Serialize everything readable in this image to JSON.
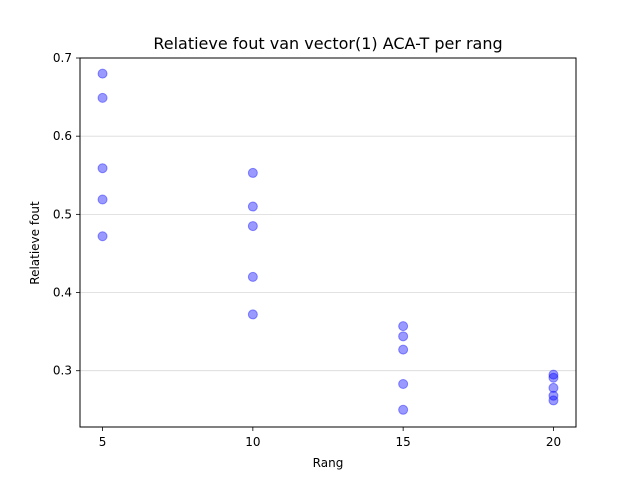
{
  "chart_data": {
    "type": "scatter",
    "title": "Relatieve fout van vector(1) ACA-T per rang",
    "xlabel": "Rang",
    "ylabel": "Relatieve fout",
    "xlim": [
      4.25,
      20.75
    ],
    "ylim": [
      0.228,
      0.7
    ],
    "x_ticks": [
      5,
      10,
      15,
      20
    ],
    "y_ticks": [
      0.3,
      0.4,
      0.5,
      0.6,
      0.7
    ],
    "grid": "horizontal",
    "marker_color": "#0000ff",
    "marker_alpha": 0.4,
    "points": [
      {
        "x": 5,
        "y": 0.68
      },
      {
        "x": 5,
        "y": 0.649
      },
      {
        "x": 5,
        "y": 0.559
      },
      {
        "x": 5,
        "y": 0.519
      },
      {
        "x": 5,
        "y": 0.472
      },
      {
        "x": 10,
        "y": 0.553
      },
      {
        "x": 10,
        "y": 0.51
      },
      {
        "x": 10,
        "y": 0.485
      },
      {
        "x": 10,
        "y": 0.42
      },
      {
        "x": 10,
        "y": 0.372
      },
      {
        "x": 15,
        "y": 0.357
      },
      {
        "x": 15,
        "y": 0.344
      },
      {
        "x": 15,
        "y": 0.327
      },
      {
        "x": 15,
        "y": 0.283
      },
      {
        "x": 15,
        "y": 0.25
      },
      {
        "x": 20,
        "y": 0.295
      },
      {
        "x": 20,
        "y": 0.291
      },
      {
        "x": 20,
        "y": 0.278
      },
      {
        "x": 20,
        "y": 0.268
      },
      {
        "x": 20,
        "y": 0.262
      }
    ]
  }
}
